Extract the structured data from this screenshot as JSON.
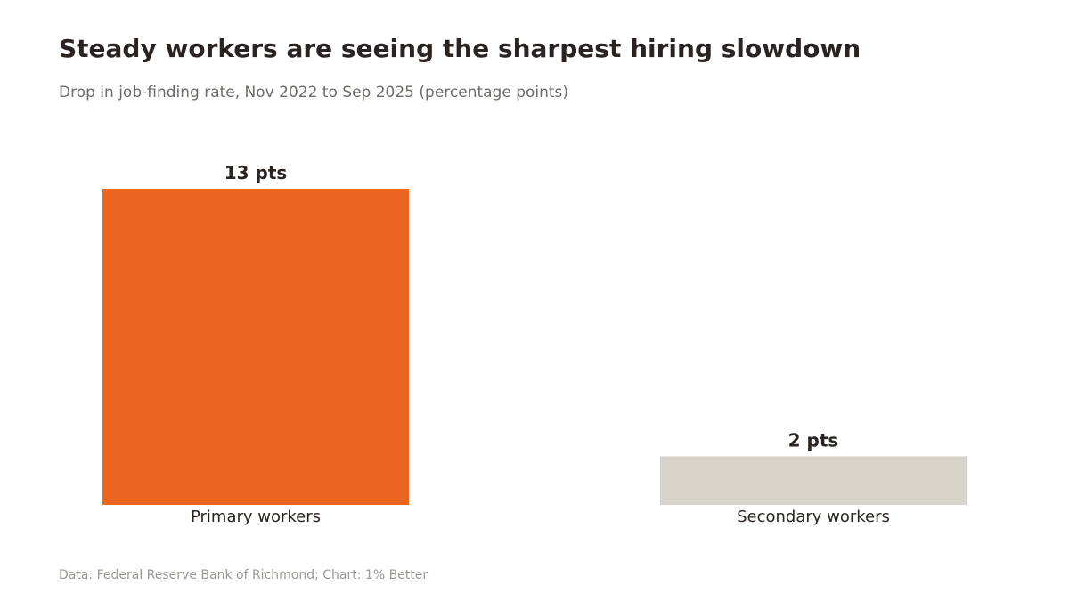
{
  "chart_data": {
    "type": "bar",
    "title": "Steady workers are seeing the sharpest hiring slowdown",
    "subtitle": "Drop in job-finding rate, Nov 2022 to Sep 2025 (percentage points)",
    "categories": [
      "Primary workers",
      "Secondary workers"
    ],
    "values": [
      13,
      2
    ],
    "value_labels": [
      "13 pts",
      "2 pts"
    ],
    "colors": [
      "#eb6420",
      "#d9d4cb"
    ],
    "ylim": [
      0,
      13
    ],
    "grid": false,
    "source": "Data: Federal Reserve Bank of Richmond; Chart: 1% Better"
  }
}
